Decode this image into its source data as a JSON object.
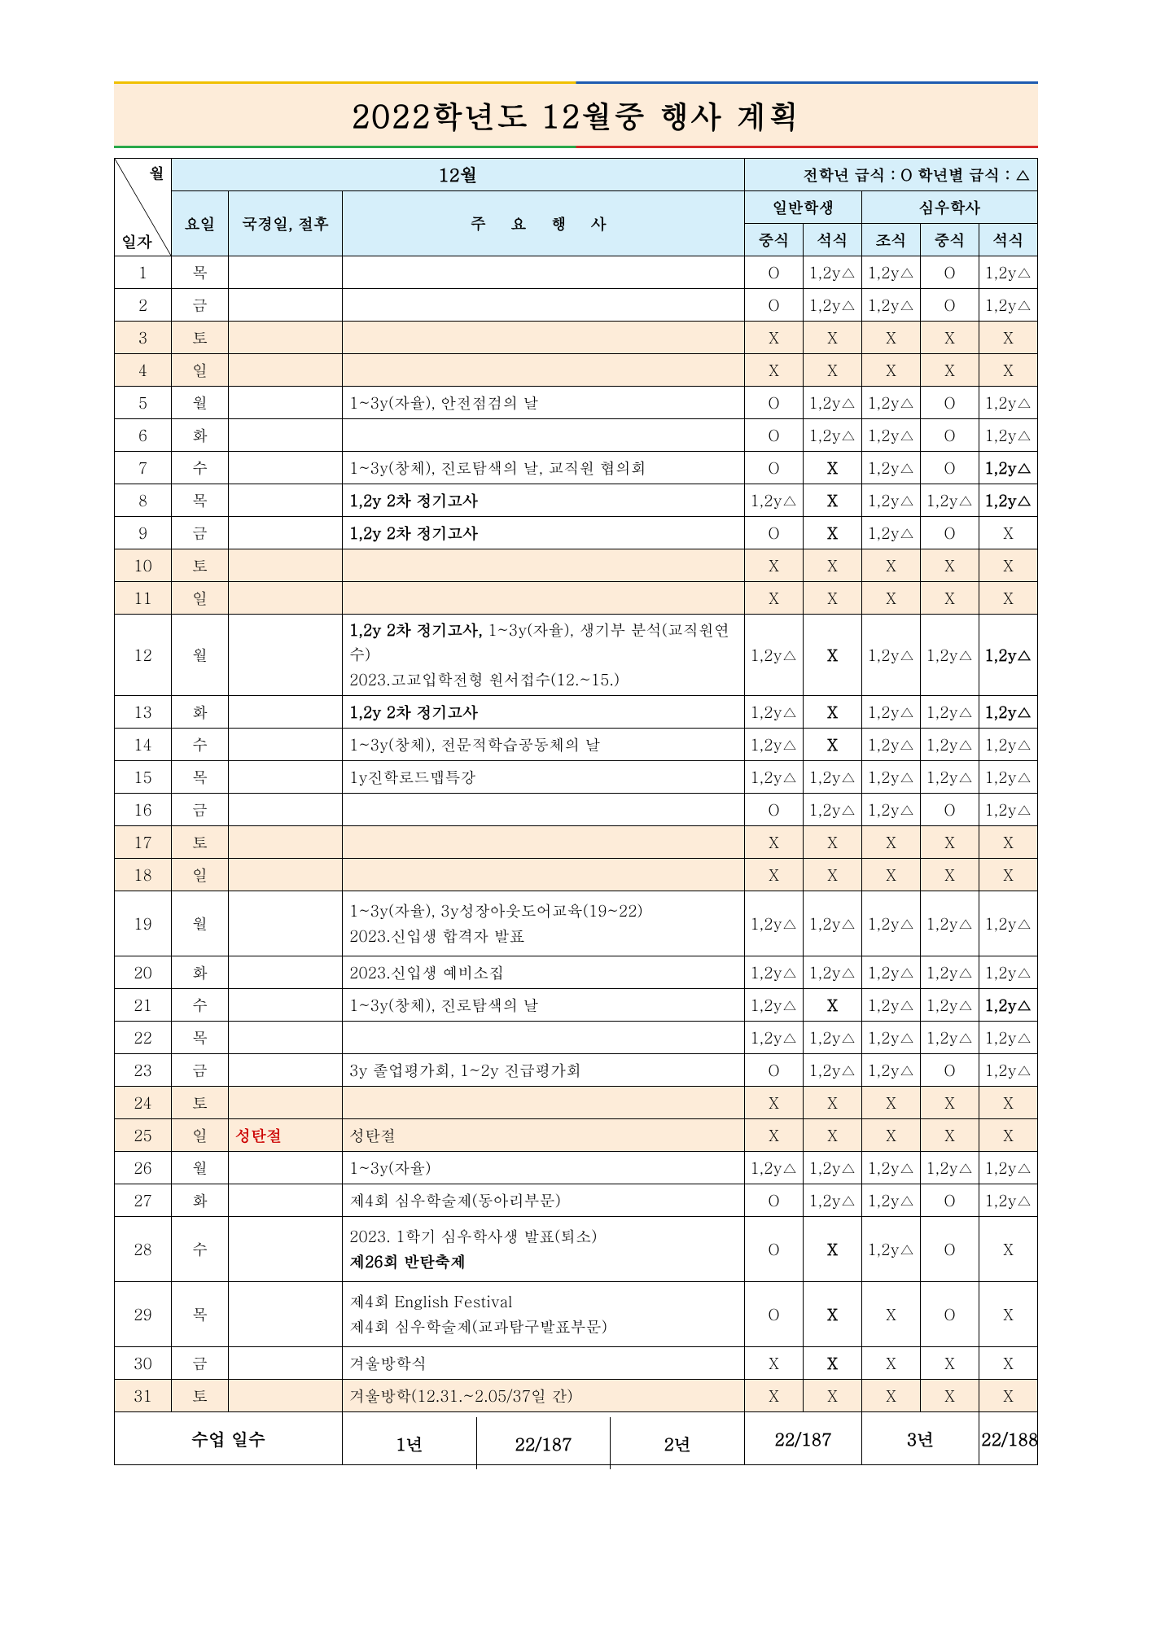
{
  "title": "2022학년도 12월중 행사 계획",
  "legend": "전학년 급식 : O  학년별 급식 : △",
  "month_label": "12월",
  "headers": {
    "date_month": "월",
    "date_day": "일자",
    "weekday": "요일",
    "holiday": "국경일, 절후",
    "main_event": "주    요    행    사",
    "general": "일반학생",
    "dorm": "심우학사",
    "lunch": "중식",
    "dinner": "석식",
    "breakfast": "조식"
  },
  "rows": [
    {
      "d": "1",
      "w": "목",
      "h": "",
      "e": "",
      "m": [
        "O",
        "1,2y△",
        "1,2y△",
        "O",
        "1,2y△"
      ],
      "peach": false
    },
    {
      "d": "2",
      "w": "금",
      "h": "",
      "e": "",
      "m": [
        "O",
        "1,2y△",
        "1,2y△",
        "O",
        "1,2y△"
      ],
      "peach": false
    },
    {
      "d": "3",
      "w": "토",
      "h": "",
      "e": "",
      "m": [
        "X",
        "X",
        "X",
        "X",
        "X"
      ],
      "peach": true
    },
    {
      "d": "4",
      "w": "일",
      "h": "",
      "e": "",
      "m": [
        "X",
        "X",
        "X",
        "X",
        "X"
      ],
      "peach": true
    },
    {
      "d": "5",
      "w": "월",
      "h": "",
      "e": "1~3y(자율), 안전점검의 날",
      "m": [
        "O",
        "1,2y△",
        "1,2y△",
        "O",
        "1,2y△"
      ],
      "peach": false
    },
    {
      "d": "6",
      "w": "화",
      "h": "",
      "e": "",
      "m": [
        "O",
        "1,2y△",
        "1,2y△",
        "O",
        "1,2y△"
      ],
      "peach": false
    },
    {
      "d": "7",
      "w": "수",
      "h": "",
      "e": "1~3y(창체), 진로탐색의 날,  교직원 협의회",
      "m": [
        "O",
        "X",
        "1,2y△",
        "O",
        "1,2y△"
      ],
      "bold_last": true,
      "peach": false
    },
    {
      "d": "8",
      "w": "목",
      "h": "",
      "e": "1,2y 2차 정기고사",
      "e_bold": true,
      "m": [
        "1,2y△",
        "X",
        "1,2y△",
        "1,2y△",
        "1,2y△"
      ],
      "bold_last": true,
      "peach": false
    },
    {
      "d": "9",
      "w": "금",
      "h": "",
      "e": "1,2y 2차 정기고사",
      "e_bold": true,
      "m": [
        "O",
        "X",
        "1,2y△",
        "O",
        "X"
      ],
      "peach": false
    },
    {
      "d": "10",
      "w": "토",
      "h": "",
      "e": "",
      "m": [
        "X",
        "X",
        "X",
        "X",
        "X"
      ],
      "peach": true
    },
    {
      "d": "11",
      "w": "일",
      "h": "",
      "e": "",
      "m": [
        "X",
        "X",
        "X",
        "X",
        "X"
      ],
      "peach": true
    },
    {
      "d": "12",
      "w": "월",
      "h": "",
      "e": "1,2y 2차 정기고사, 1~3y(자율), 생기부 분석(교직원연수)\n2023.고교입학전형 원서접수(12.~15.)",
      "e_bold_prefix": "1,2y 2차 정기고사,",
      "m": [
        "1,2y△",
        "X",
        "1,2y△",
        "1,2y△",
        "1,2y△"
      ],
      "bold_last": true,
      "tall": true,
      "peach": false
    },
    {
      "d": "13",
      "w": "화",
      "h": "",
      "e": "1,2y 2차 정기고사",
      "e_bold": true,
      "m": [
        "1,2y△",
        "X",
        "1,2y△",
        "1,2y△",
        "1,2y△"
      ],
      "bold_last": true,
      "peach": false
    },
    {
      "d": "14",
      "w": "수",
      "h": "",
      "e": "1~3y(창체), 전문적학습공동체의 날",
      "m": [
        "1,2y△",
        "X",
        "1,2y△",
        "1,2y△",
        "1,2y△"
      ],
      "peach": false
    },
    {
      "d": "15",
      "w": "목",
      "h": "",
      "e": "1y진학로드맵특강",
      "m": [
        "1,2y△",
        "1,2y△",
        "1,2y△",
        "1,2y△",
        "1,2y△"
      ],
      "peach": false
    },
    {
      "d": "16",
      "w": "금",
      "h": "",
      "e": "",
      "m": [
        "O",
        "1,2y△",
        "1,2y△",
        "O",
        "1,2y△"
      ],
      "peach": false
    },
    {
      "d": "17",
      "w": "토",
      "h": "",
      "e": "",
      "m": [
        "X",
        "X",
        "X",
        "X",
        "X"
      ],
      "peach": true
    },
    {
      "d": "18",
      "w": "일",
      "h": "",
      "e": "",
      "m": [
        "X",
        "X",
        "X",
        "X",
        "X"
      ],
      "peach": true
    },
    {
      "d": "19",
      "w": "월",
      "h": "",
      "e": "1~3y(자율), 3y성장아웃도어교육(19~22)\n2023.신입생 합격자 발표",
      "m": [
        "1,2y△",
        "1,2y△",
        "1,2y△",
        "1,2y△",
        "1,2y△"
      ],
      "tall": true,
      "peach": false
    },
    {
      "d": "20",
      "w": "화",
      "h": "",
      "e": "2023.신입생 예비소집",
      "m": [
        "1,2y△",
        "1,2y△",
        "1,2y△",
        "1,2y△",
        "1,2y△"
      ],
      "peach": false
    },
    {
      "d": "21",
      "w": "수",
      "h": "",
      "e": "1~3y(창체), 진로탐색의 날",
      "m": [
        "1,2y△",
        "X",
        "1,2y△",
        "1,2y△",
        "1,2y△"
      ],
      "bold_last": true,
      "peach": false
    },
    {
      "d": "22",
      "w": "목",
      "h": "",
      "e": "",
      "m": [
        "1,2y△",
        "1,2y△",
        "1,2y△",
        "1,2y△",
        "1,2y△"
      ],
      "peach": false
    },
    {
      "d": "23",
      "w": "금",
      "h": "",
      "e": "3y 졸업평가회, 1~2y 진급평가회",
      "m": [
        "O",
        "1,2y△",
        "1,2y△",
        "O",
        "1,2y△"
      ],
      "peach": false
    },
    {
      "d": "24",
      "w": "토",
      "h": "",
      "e": "",
      "m": [
        "X",
        "X",
        "X",
        "X",
        "X"
      ],
      "peach": true
    },
    {
      "d": "25",
      "w": "일",
      "h": "성탄절",
      "h_red": true,
      "e": "성탄절",
      "m": [
        "X",
        "X",
        "X",
        "X",
        "X"
      ],
      "peach": true
    },
    {
      "d": "26",
      "w": "월",
      "h": "",
      "e": "1~3y(자율)",
      "m": [
        "1,2y△",
        "1,2y△",
        "1,2y△",
        "1,2y△",
        "1,2y△"
      ],
      "peach": false
    },
    {
      "d": "27",
      "w": "화",
      "h": "",
      "e": "제4회 심우학술제(동아리부문)",
      "m": [
        "O",
        "1,2y△",
        "1,2y△",
        "O",
        "1,2y△"
      ],
      "peach": false
    },
    {
      "d": "28",
      "w": "수",
      "h": "",
      "e": "2023. 1학기 심우학사생 발표(퇴소)\n제26회 반탄축제",
      "e_bold_line2": true,
      "m": [
        "O",
        "X",
        "1,2y△",
        "O",
        "X"
      ],
      "tall": true,
      "peach": false
    },
    {
      "d": "29",
      "w": "목",
      "h": "",
      "e": "제4회 English Festival\n제4회 심우학술제(교과탐구발표부문)",
      "m": [
        "O",
        "X",
        "X",
        "O",
        "X"
      ],
      "tall": true,
      "peach": false
    },
    {
      "d": "30",
      "w": "금",
      "h": "",
      "e": "겨울방학식",
      "m": [
        "X",
        "X",
        "X",
        "X",
        "X"
      ],
      "peach": false
    },
    {
      "d": "31",
      "w": "토",
      "h": "",
      "e": "겨울방학(12.31.~2.05/37일 간)",
      "m": [
        "X",
        "X",
        "X",
        "X",
        "X"
      ],
      "peach": true
    }
  ],
  "footer": {
    "label": "수업 일수",
    "y1_label": "1년",
    "y1_value": "22/187",
    "y2_label": "2년",
    "y2_value": "22/187",
    "y3_label": "3년",
    "y3_value": "22/188"
  },
  "colors": {
    "header_bg": "#d6effa",
    "peach_bg": "#fdecd9",
    "border": "#000000",
    "red_text": "#cc0000"
  }
}
